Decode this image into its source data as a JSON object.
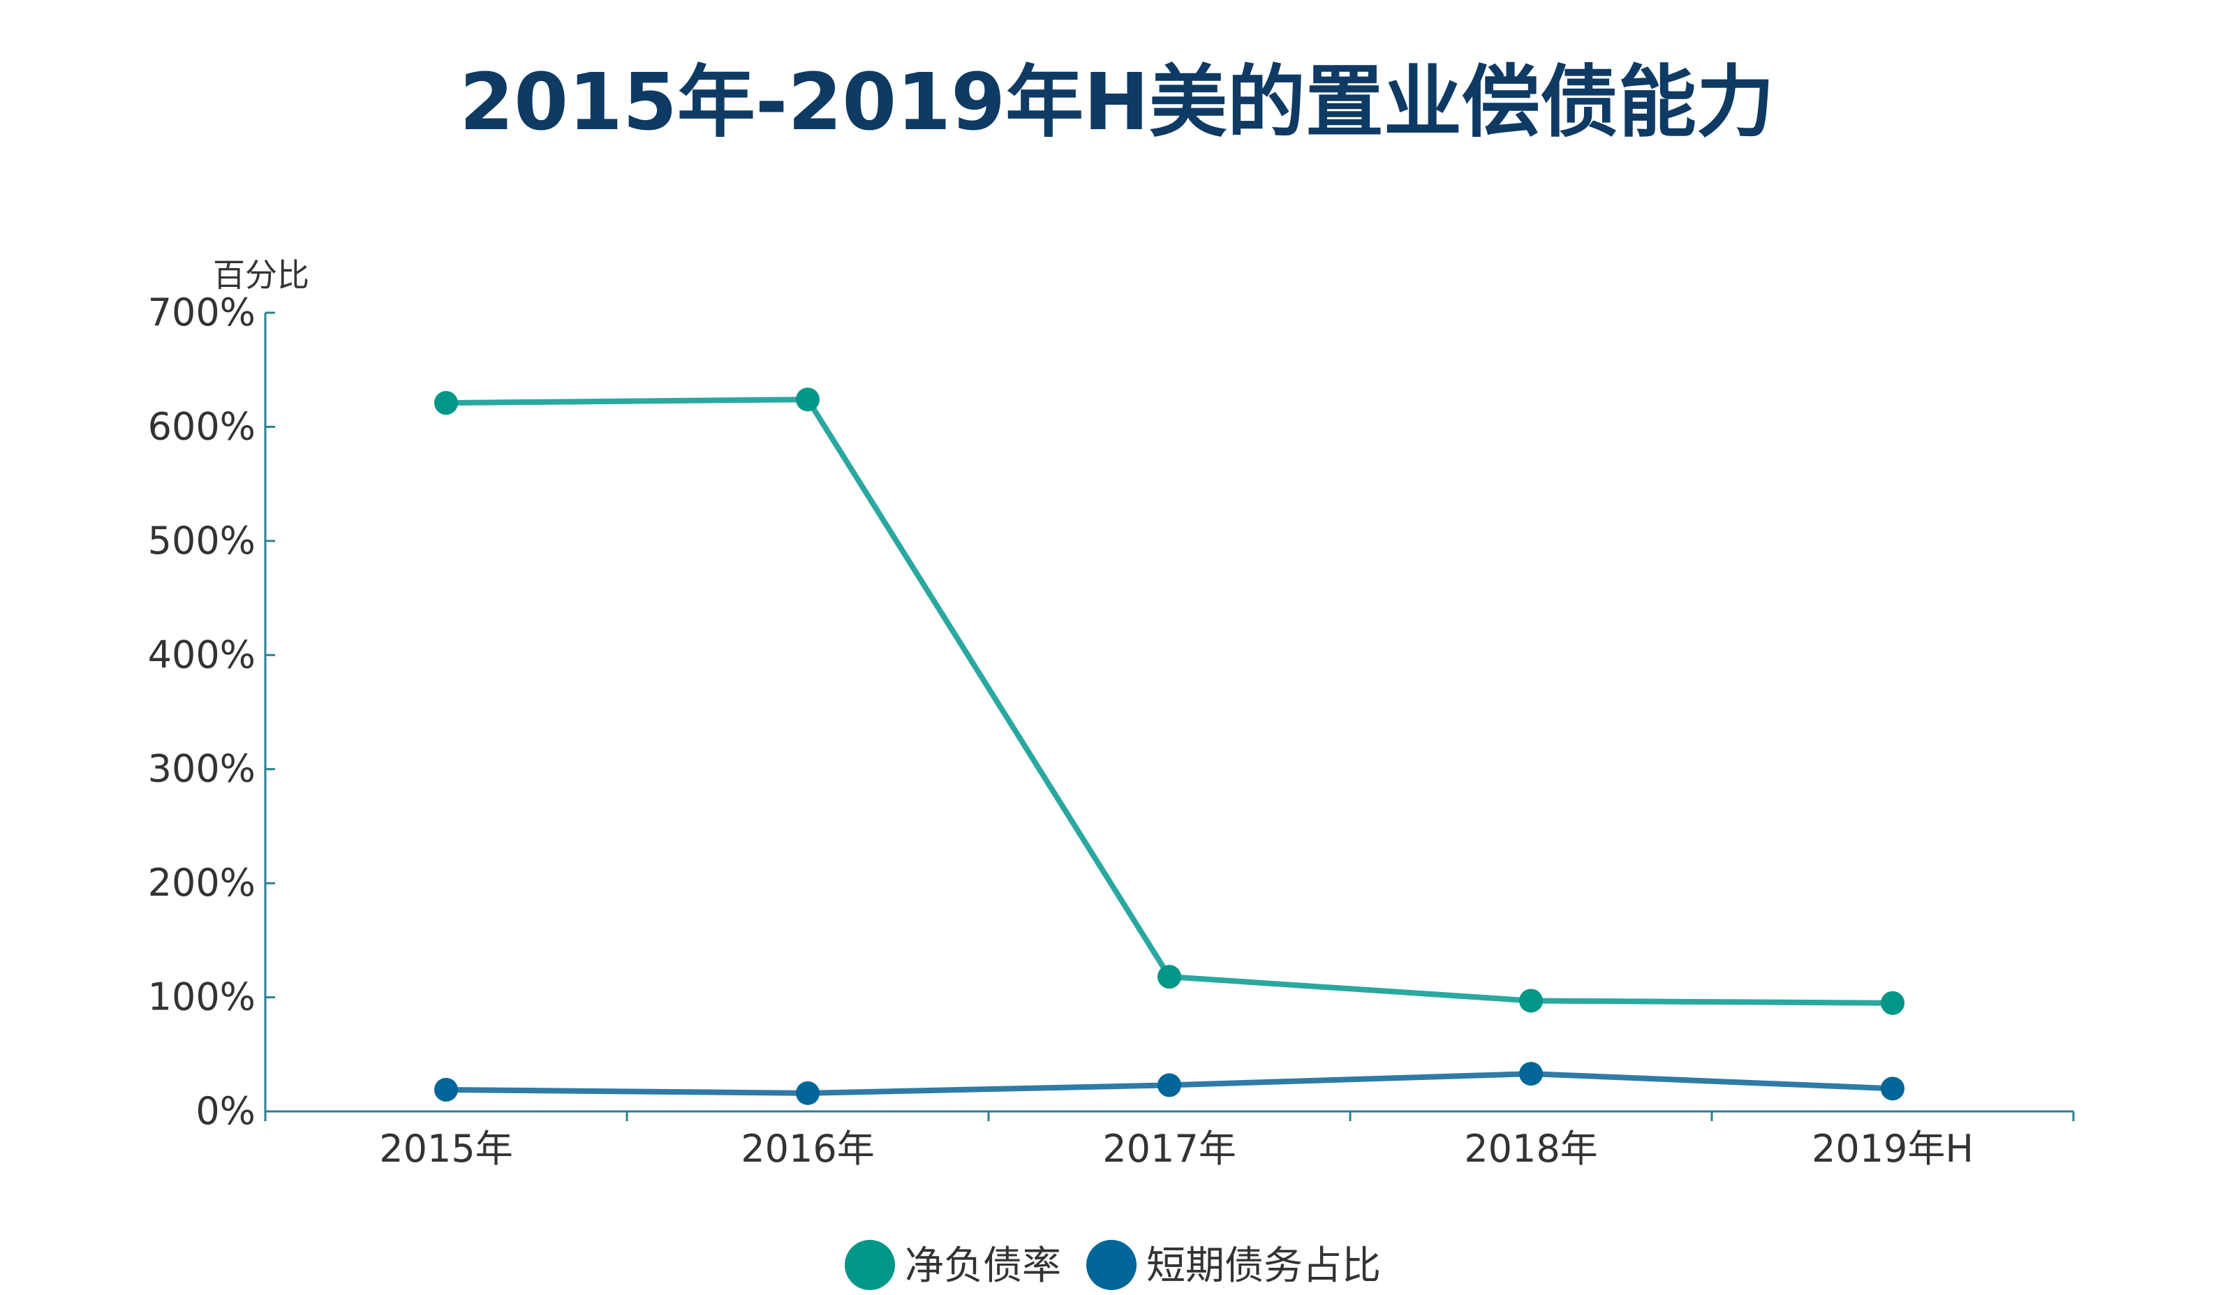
{
  "chart_data": {
    "type": "line",
    "title": "2015年-2019年H美的置业偿债能力",
    "ylabel": "百分比",
    "categories": [
      "2015年",
      "2016年",
      "2017年",
      "2018年",
      "2019年H"
    ],
    "ylim": [
      0,
      700
    ],
    "yticks": [
      0,
      100,
      200,
      300,
      400,
      500,
      600,
      700
    ],
    "ytick_suffix": "%",
    "grid": false,
    "legend_position": "bottom-center",
    "series": [
      {
        "name": "净负债率",
        "values": [
          621,
          624,
          118,
          97,
          95
        ],
        "color": "#009688",
        "line_color": "#2aa8a0"
      },
      {
        "name": "短期债务占比",
        "values": [
          19,
          16,
          23,
          33,
          20
        ],
        "color": "#006699",
        "line_color": "#2f7ba6"
      }
    ],
    "axis_color": "#2a7f8f"
  }
}
